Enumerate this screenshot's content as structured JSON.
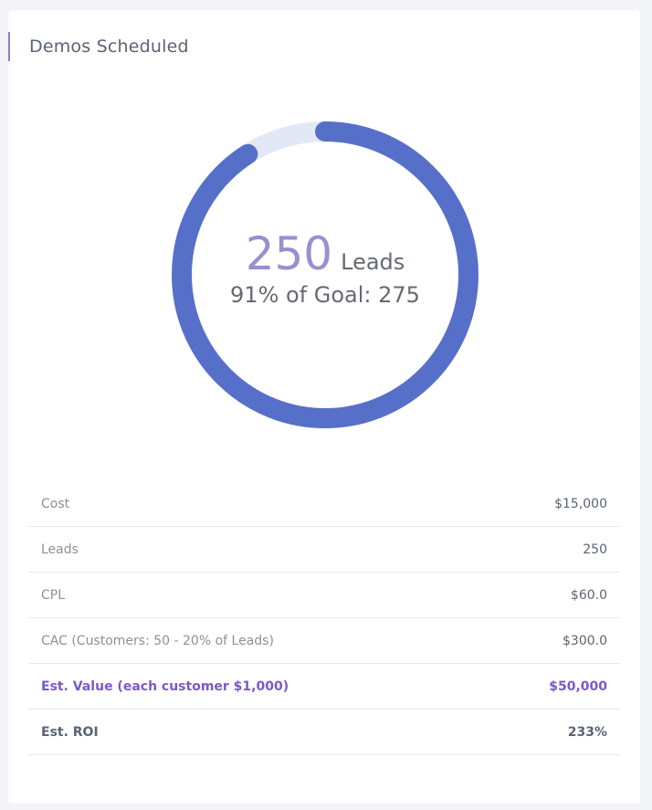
{
  "card": {
    "title": "Demos Scheduled"
  },
  "gauge": {
    "value": "250",
    "unit": "Leads",
    "goal_text": "91% of Goal: 275",
    "progress_fraction": 0.909,
    "colors": {
      "progress": "#5670c9",
      "track": "#e3e8f6",
      "value": "#9a8fd0"
    }
  },
  "metrics": [
    {
      "label": "Cost",
      "value": "$15,000",
      "style": "normal"
    },
    {
      "label": "Leads",
      "value": "250",
      "style": "normal"
    },
    {
      "label": "CPL",
      "value": "$60.0",
      "style": "normal"
    },
    {
      "label": "CAC (Customers: 50 - 20% of Leads)",
      "value": "$300.0",
      "style": "normal"
    },
    {
      "label": "Est. Value (each customer $1,000)",
      "value": "$50,000",
      "style": "highlight"
    },
    {
      "label": "Est. ROI",
      "value": "233%",
      "style": "strong"
    }
  ],
  "colors": {
    "accent": "#8a7ed0",
    "highlight": "#7b59c8",
    "text": "#5b6473",
    "muted": "#8a909a"
  }
}
